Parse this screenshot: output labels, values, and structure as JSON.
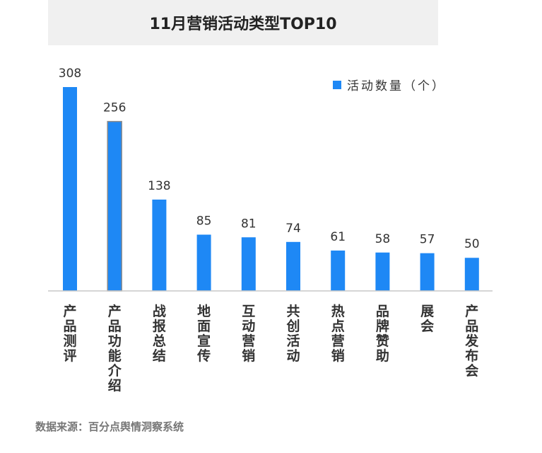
{
  "title": "11月营销活动类型TOP10",
  "source": "数据来源：百分点舆情洞察系统",
  "chart_data": {
    "type": "bar",
    "categories": [
      "产品测评",
      "产品功能介绍",
      "战报总结",
      "地面宣传",
      "互动营销",
      "共创活动",
      "热点营销",
      "品牌赞助",
      "展会",
      "产品发布会"
    ],
    "series": [
      {
        "name": "活动数量（个）",
        "values": [
          308,
          256,
          138,
          85,
          81,
          74,
          61,
          58,
          57,
          50
        ]
      }
    ],
    "ylim": [
      0,
      340
    ],
    "legend_position": "top-right",
    "grid": false,
    "bar_color": "#1e88f5",
    "highlight_border_color": "#8a8a8a"
  }
}
